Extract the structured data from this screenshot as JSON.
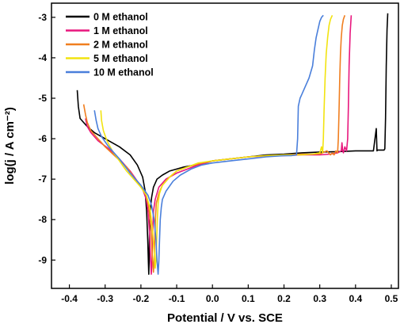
{
  "chart_data": {
    "type": "line",
    "title": "",
    "xlabel": "Potential / V vs. SCE",
    "ylabel": "log(j / A cm⁻²)",
    "xlim": [
      -0.45,
      0.52
    ],
    "ylim": [
      -9.7,
      -2.65
    ],
    "xticks": [
      "-0.4",
      "-0.3",
      "-0.2",
      "-0.1",
      "0.0",
      "0.1",
      "0.2",
      "0.3",
      "0.4",
      "0.5"
    ],
    "yticks": [
      "-3",
      "-4",
      "-5",
      "-6",
      "-7",
      "-8",
      "-9"
    ],
    "grid": false,
    "legend_position": "top-left",
    "series": [
      {
        "name": "0  M ethanol",
        "color": "#000000",
        "x": [
          -0.378,
          -0.375,
          -0.37,
          -0.36,
          -0.35,
          -0.33,
          -0.3,
          -0.26,
          -0.23,
          -0.21,
          -0.195,
          -0.188,
          -0.184,
          -0.181,
          -0.179,
          -0.178,
          -0.177,
          -0.176,
          -0.174,
          -0.17,
          -0.165,
          -0.155,
          -0.14,
          -0.12,
          -0.1,
          -0.08,
          -0.05,
          -0.02,
          0.0,
          0.05,
          0.1,
          0.15,
          0.2,
          0.25,
          0.3,
          0.35,
          0.4,
          0.45,
          0.458,
          0.46,
          0.462,
          0.47,
          0.48,
          0.482,
          0.484,
          0.486,
          0.488,
          0.49
        ],
        "y": [
          -4.8,
          -5.2,
          -5.5,
          -5.6,
          -5.7,
          -5.85,
          -6.0,
          -6.2,
          -6.4,
          -6.65,
          -6.95,
          -7.3,
          -7.8,
          -8.5,
          -9.1,
          -9.35,
          -9.0,
          -8.3,
          -7.8,
          -7.45,
          -7.2,
          -7.0,
          -6.9,
          -6.8,
          -6.75,
          -6.7,
          -6.65,
          -6.6,
          -6.55,
          -6.5,
          -6.45,
          -6.4,
          -6.38,
          -6.35,
          -6.33,
          -6.32,
          -6.3,
          -6.3,
          -5.75,
          -6.3,
          -6.28,
          -6.28,
          -6.28,
          -6.25,
          -5.5,
          -4.2,
          -3.3,
          -2.9
        ]
      },
      {
        "name": "1  M ethanol",
        "color": "#E8177D",
        "x": [
          -0.355,
          -0.35,
          -0.34,
          -0.32,
          -0.29,
          -0.26,
          -0.23,
          -0.21,
          -0.195,
          -0.185,
          -0.18,
          -0.176,
          -0.173,
          -0.171,
          -0.169,
          -0.167,
          -0.165,
          -0.16,
          -0.15,
          -0.13,
          -0.1,
          -0.07,
          -0.04,
          0.0,
          0.05,
          0.1,
          0.15,
          0.2,
          0.25,
          0.3,
          0.33,
          0.35,
          0.36,
          0.362,
          0.364,
          0.366,
          0.37,
          0.375,
          0.378,
          0.38,
          0.382,
          0.385,
          0.388
        ],
        "y": [
          -5.5,
          -5.7,
          -5.85,
          -6.05,
          -6.25,
          -6.5,
          -6.8,
          -7.05,
          -7.25,
          -7.5,
          -7.8,
          -8.3,
          -9.0,
          -9.35,
          -9.0,
          -8.3,
          -7.8,
          -7.5,
          -7.2,
          -7.0,
          -6.85,
          -6.75,
          -6.65,
          -6.55,
          -6.5,
          -6.45,
          -6.43,
          -6.42,
          -6.4,
          -6.4,
          -6.38,
          -6.35,
          -6.3,
          -6.1,
          -6.3,
          -6.35,
          -6.2,
          -6.3,
          -6.0,
          -5.2,
          -4.2,
          -3.4,
          -2.95
        ]
      },
      {
        "name": "2  M ethanol",
        "color": "#F07E1F",
        "x": [
          -0.36,
          -0.355,
          -0.35,
          -0.34,
          -0.32,
          -0.3,
          -0.27,
          -0.24,
          -0.22,
          -0.2,
          -0.185,
          -0.178,
          -0.172,
          -0.168,
          -0.165,
          -0.163,
          -0.161,
          -0.159,
          -0.157,
          -0.15,
          -0.14,
          -0.12,
          -0.1,
          -0.07,
          -0.03,
          0.0,
          0.05,
          0.1,
          0.15,
          0.2,
          0.25,
          0.3,
          0.32,
          0.33,
          0.335,
          0.34,
          0.345,
          0.35,
          0.352,
          0.354,
          0.356,
          0.358,
          0.36,
          0.363,
          0.366,
          0.37
        ],
        "y": [
          -5.15,
          -5.4,
          -5.6,
          -5.8,
          -6.0,
          -6.2,
          -6.45,
          -6.7,
          -6.95,
          -7.2,
          -7.4,
          -7.7,
          -8.2,
          -8.9,
          -9.3,
          -9.0,
          -8.4,
          -7.9,
          -7.6,
          -7.35,
          -7.15,
          -6.95,
          -6.8,
          -6.7,
          -6.6,
          -6.55,
          -6.5,
          -6.45,
          -6.42,
          -6.4,
          -6.38,
          -6.38,
          -6.3,
          -6.4,
          -6.35,
          -6.4,
          -6.3,
          -6.35,
          -6.0,
          -5.3,
          -4.5,
          -3.9,
          -3.5,
          -3.2,
          -3.05,
          -2.95
        ]
      },
      {
        "name": "5  M ethanol",
        "color": "#F2E310",
        "x": [
          -0.312,
          -0.31,
          -0.305,
          -0.295,
          -0.28,
          -0.26,
          -0.24,
          -0.22,
          -0.2,
          -0.185,
          -0.175,
          -0.168,
          -0.163,
          -0.16,
          -0.158,
          -0.156,
          -0.154,
          -0.152,
          -0.148,
          -0.14,
          -0.12,
          -0.1,
          -0.07,
          -0.04,
          0.0,
          0.05,
          0.1,
          0.15,
          0.2,
          0.25,
          0.28,
          0.3,
          0.305,
          0.308,
          0.31,
          0.312,
          0.315,
          0.318,
          0.322,
          0.326,
          0.33,
          0.335
        ],
        "y": [
          -5.3,
          -5.55,
          -5.8,
          -6.05,
          -6.3,
          -6.55,
          -6.8,
          -7.0,
          -7.2,
          -7.4,
          -7.7,
          -8.2,
          -8.8,
          -9.2,
          -9.0,
          -8.5,
          -7.95,
          -7.6,
          -7.35,
          -7.15,
          -6.95,
          -6.8,
          -6.7,
          -6.6,
          -6.55,
          -6.5,
          -6.45,
          -6.42,
          -6.4,
          -6.4,
          -6.38,
          -6.35,
          -6.2,
          -6.35,
          -6.0,
          -5.3,
          -4.5,
          -3.9,
          -3.5,
          -3.2,
          -3.05,
          -2.95
        ]
      },
      {
        "name": "10  M ethanol",
        "color": "#4A7FDB",
        "x": [
          -0.33,
          -0.325,
          -0.32,
          -0.31,
          -0.29,
          -0.26,
          -0.23,
          -0.2,
          -0.18,
          -0.17,
          -0.163,
          -0.158,
          -0.155,
          -0.152,
          -0.15,
          -0.148,
          -0.146,
          -0.143,
          -0.14,
          -0.13,
          -0.11,
          -0.09,
          -0.06,
          -0.03,
          0.0,
          0.05,
          0.1,
          0.15,
          0.2,
          0.22,
          0.235,
          0.238,
          0.24,
          0.245,
          0.25,
          0.26,
          0.27,
          0.28,
          0.285,
          0.29,
          0.295,
          0.3,
          0.305,
          0.31
        ],
        "y": [
          -5.3,
          -5.55,
          -5.75,
          -5.95,
          -6.2,
          -6.5,
          -6.85,
          -7.15,
          -7.4,
          -7.65,
          -8.0,
          -8.5,
          -9.0,
          -9.35,
          -9.05,
          -8.5,
          -8.0,
          -7.7,
          -7.5,
          -7.3,
          -7.05,
          -6.9,
          -6.75,
          -6.65,
          -6.6,
          -6.55,
          -6.5,
          -6.45,
          -6.42,
          -6.42,
          -6.4,
          -6.0,
          -5.2,
          -5.0,
          -4.9,
          -4.7,
          -4.5,
          -4.2,
          -3.8,
          -3.5,
          -3.3,
          -3.1,
          -3.0,
          -2.95
        ]
      }
    ]
  }
}
